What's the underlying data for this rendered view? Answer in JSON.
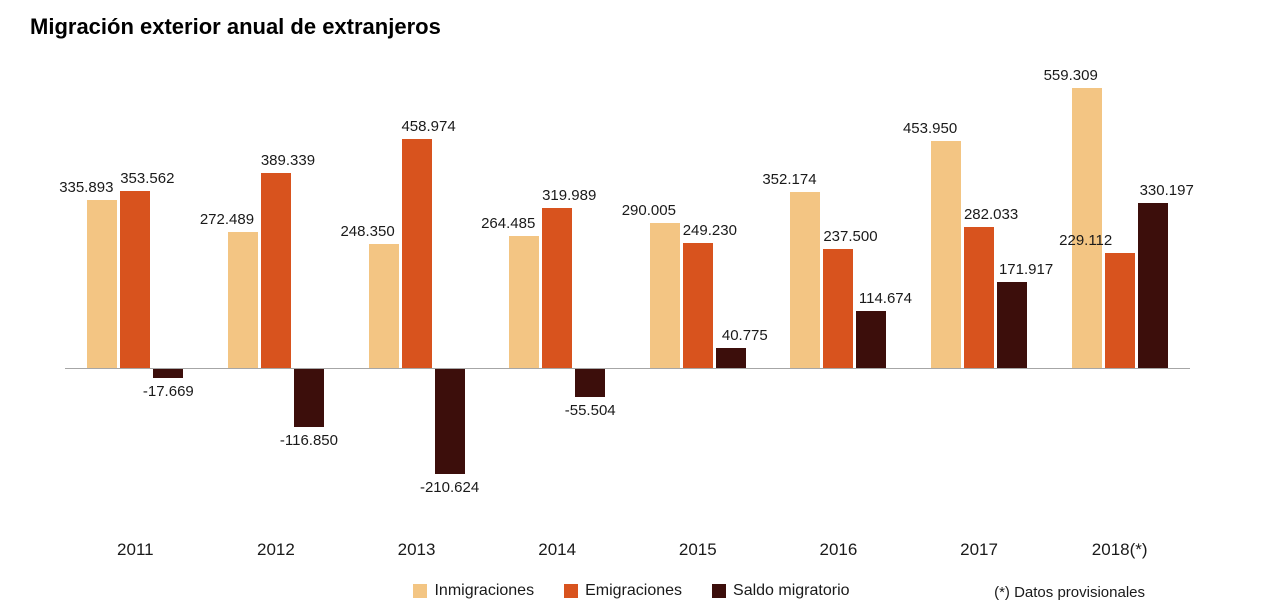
{
  "chart_data": {
    "type": "bar",
    "title": "Migración exterior anual de extranjeros",
    "categories": [
      "2011",
      "2012",
      "2013",
      "2014",
      "2015",
      "2016",
      "2017",
      "2018(*)"
    ],
    "series": [
      {
        "name": "Inmigraciones",
        "color": "#F3C583",
        "values": [
          335893,
          272489,
          248350,
          264485,
          290005,
          352174,
          453950,
          559309
        ]
      },
      {
        "name": "Emigraciones",
        "color": "#D8531E",
        "values": [
          353562,
          389339,
          458974,
          319989,
          249230,
          237500,
          282033,
          229112
        ]
      },
      {
        "name": "Saldo migratorio",
        "color": "#3C0E0B",
        "values": [
          -17669,
          -116850,
          -210624,
          -55504,
          40775,
          114674,
          171917,
          330197
        ]
      }
    ],
    "footnote": "(*) Datos provisionales",
    "value_label_format": "thousands-dot",
    "xlabel": "",
    "ylabel": "",
    "ylim": [
      -220000,
      580000
    ],
    "grid": false,
    "legend_position": "bottom",
    "baseline": 0
  }
}
